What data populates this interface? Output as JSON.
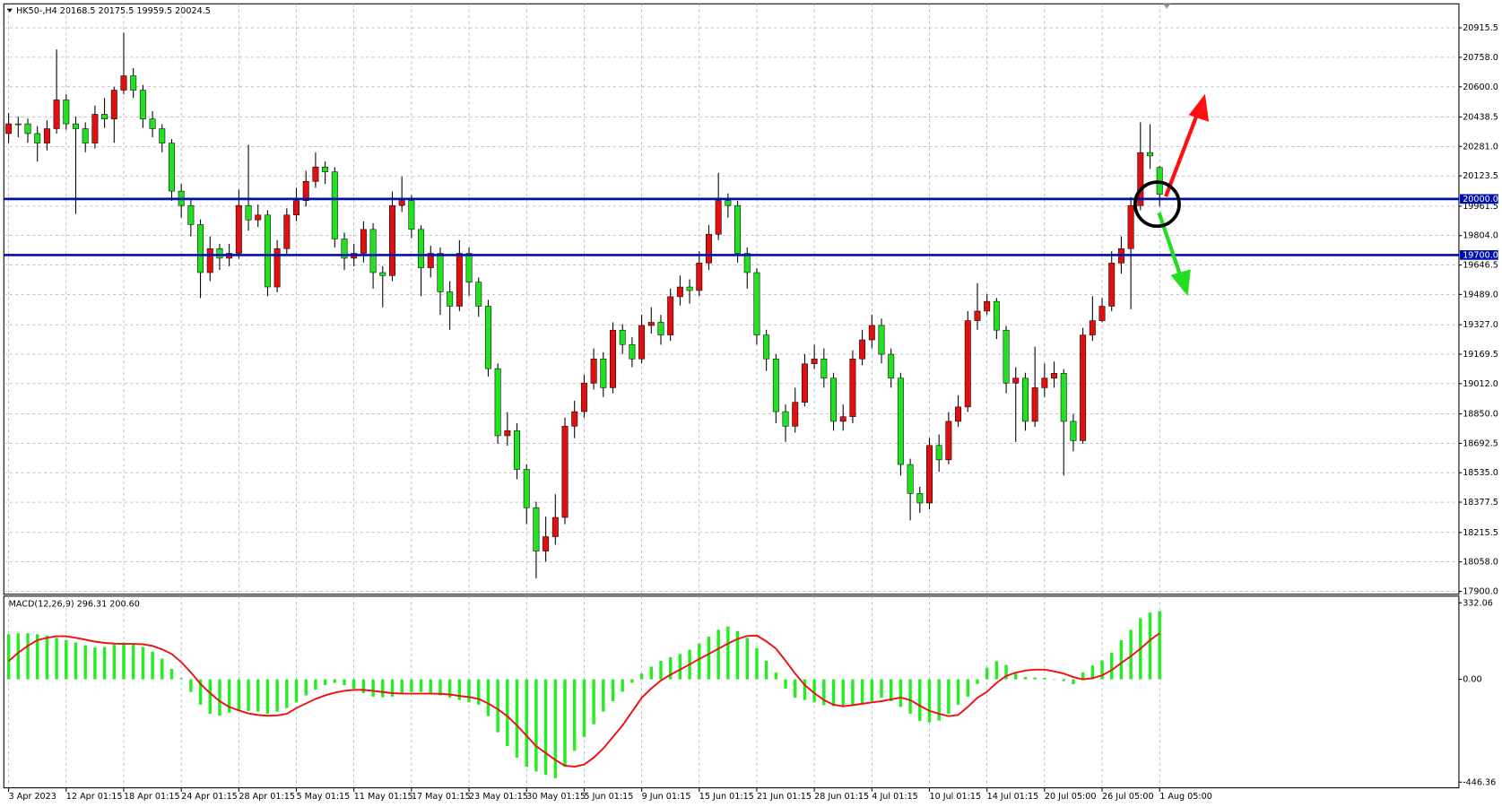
{
  "chart_data": [
    {
      "type": "candlestick",
      "title": "HK50-,H4  20168.5 20175.5 19959.5 20024.5",
      "xlim": [
        -0.5,
        151.2
      ],
      "ylim": [
        17885,
        21044
      ],
      "grid": true,
      "up_color": "#e01010",
      "down_color": "#22e022",
      "wick_color": "#000000",
      "xticks": [
        {
          "value": 0,
          "label": "3 Apr 2023"
        },
        {
          "value": 6,
          "label": "12 Apr 01:15"
        },
        {
          "value": 12,
          "label": "18 Apr 01:15"
        },
        {
          "value": 18,
          "label": "24 Apr 01:15"
        },
        {
          "value": 24,
          "label": "28 Apr 01:15"
        },
        {
          "value": 30,
          "label": "5 May 01:15"
        },
        {
          "value": 36,
          "label": "11 May 01:15"
        },
        {
          "value": 42,
          "label": "17 May 01:15"
        },
        {
          "value": 48,
          "label": "23 May 01:15"
        },
        {
          "value": 54,
          "label": "30 May 01:15"
        },
        {
          "value": 60,
          "label": "5 Jun 01:15"
        },
        {
          "value": 66,
          "label": "9 Jun 01:15"
        },
        {
          "value": 72,
          "label": "15 Jun 01:15"
        },
        {
          "value": 78,
          "label": "21 Jun 01:15"
        },
        {
          "value": 84,
          "label": "28 Jun 01:15"
        },
        {
          "value": 90,
          "label": "4 Jul 01:15"
        },
        {
          "value": 96,
          "label": "10 Jul 01:15"
        },
        {
          "value": 102,
          "label": "14 Jul 01:15"
        },
        {
          "value": 108,
          "label": "20 Jul 05:00"
        },
        {
          "value": 114,
          "label": "26 Jul 05:00"
        },
        {
          "value": 120,
          "label": "1 Aug 05:00"
        }
      ],
      "yticks": [
        20915.5,
        {
          "value": 20758,
          "label": "20758.0"
        },
        {
          "value": 20600,
          "label": "20600.0"
        },
        20438.5,
        {
          "value": 20281,
          "label": "20281.0"
        },
        20123.5,
        19961.5,
        {
          "value": 19804,
          "label": "19804.0"
        },
        19646.5,
        {
          "value": 19489,
          "label": "19489.0"
        },
        {
          "value": 19327,
          "label": "19327.0"
        },
        19169.5,
        {
          "value": 19012,
          "label": "19012.0"
        },
        {
          "value": 18850,
          "label": "18850.0"
        },
        18692.5,
        {
          "value": 18535,
          "label": "18535.0"
        },
        18377.5,
        18215.5,
        {
          "value": 18058,
          "label": "18058.0"
        },
        {
          "value": 17900,
          "label": "17900.0"
        }
      ],
      "hlines": [
        {
          "value": 20000,
          "label": "20000.0",
          "color": "#0010b0"
        },
        {
          "value": 19700,
          "label": "19700.0",
          "color": "#0010b0"
        }
      ],
      "open": [
        20350,
        20402,
        20402,
        20350,
        20299,
        20376,
        20530,
        20402,
        20376,
        20299,
        20453,
        20428,
        20582,
        20659,
        20582,
        20428,
        20376,
        20299,
        20042,
        19965,
        19863,
        19606,
        19734,
        19683,
        19709,
        19965,
        19888,
        19914,
        19529,
        19734,
        19914,
        19991,
        20094,
        20171,
        20145,
        19786,
        19683,
        19709,
        19837,
        19606,
        19590,
        19965,
        19991,
        19837,
        19632,
        19709,
        19503,
        19426,
        19709,
        19555,
        19426,
        19092,
        18733,
        18760,
        18553,
        18348,
        18116,
        18193,
        18296,
        18784,
        18862,
        19015,
        19144,
        18990,
        19298,
        19221,
        19144,
        19323,
        19340,
        19272,
        19477,
        19529,
        19510,
        19657,
        19811,
        19991,
        19965,
        19709,
        19606,
        19272,
        19144,
        18862,
        18784,
        18912,
        19118,
        19144,
        19041,
        18810,
        18835,
        19144,
        19246,
        19323,
        19169,
        19041,
        18579,
        18424,
        18373,
        18681,
        18604,
        18810,
        18887,
        19349,
        19400,
        19452,
        19298,
        19015,
        19041,
        18810,
        18990,
        19041,
        19067,
        18810,
        18707,
        19272,
        19349,
        19426,
        19657,
        19734,
        19965,
        20248,
        20168.5
      ],
      "high": [
        20460,
        20440,
        20430,
        20390,
        20420,
        20800,
        20560,
        20440,
        20410,
        20500,
        20540,
        20600,
        20890,
        20700,
        20610,
        20470,
        20400,
        20320,
        20080,
        20000,
        19890,
        19800,
        19760,
        19760,
        20050,
        20290,
        19970,
        19940,
        19780,
        19950,
        20060,
        20150,
        20250,
        20200,
        20170,
        19820,
        19760,
        19880,
        19870,
        19640,
        20040,
        20120,
        20020,
        19860,
        19750,
        19740,
        19560,
        19780,
        19740,
        19580,
        19460,
        19120,
        18860,
        18800,
        18580,
        18380,
        18300,
        18420,
        18830,
        18920,
        19060,
        19200,
        19180,
        19340,
        19330,
        19260,
        19380,
        19420,
        19380,
        19520,
        19590,
        19570,
        19720,
        19860,
        20140,
        20030,
        19990,
        19740,
        19630,
        19300,
        19170,
        18900,
        18990,
        19170,
        19220,
        19200,
        19070,
        18900,
        19190,
        19300,
        19380,
        19360,
        19200,
        19070,
        18610,
        18460,
        18720,
        18740,
        18860,
        18950,
        19400,
        19550,
        19490,
        19470,
        19320,
        19100,
        19070,
        19210,
        19120,
        19130,
        19090,
        18850,
        19310,
        19480,
        19470,
        19720,
        19800,
        20010,
        20410,
        20400,
        20175.5
      ],
      "low": [
        20300,
        20330,
        20300,
        20200,
        20260,
        20350,
        20370,
        19920,
        20250,
        20270,
        20380,
        20300,
        20560,
        20540,
        20380,
        20330,
        20250,
        19990,
        19900,
        19800,
        19470,
        19560,
        19620,
        19640,
        19680,
        19830,
        19850,
        19480,
        19500,
        19700,
        19880,
        19960,
        20060,
        20080,
        19740,
        19620,
        19640,
        19660,
        19520,
        19420,
        19560,
        19930,
        19790,
        19480,
        19580,
        19380,
        19300,
        19400,
        19480,
        19370,
        19050,
        18690,
        18680,
        18500,
        18260,
        17970,
        18060,
        18150,
        18260,
        18720,
        18830,
        18980,
        18940,
        18960,
        19170,
        19100,
        19120,
        19280,
        19220,
        19240,
        19430,
        19440,
        19480,
        19620,
        19780,
        19900,
        19660,
        19520,
        19220,
        19080,
        18800,
        18700,
        18750,
        18890,
        19090,
        18990,
        18760,
        18760,
        18800,
        19110,
        19200,
        19120,
        18990,
        18520,
        18280,
        18320,
        18340,
        18540,
        18580,
        18780,
        18860,
        19300,
        19380,
        19250,
        18960,
        18700,
        18760,
        18780,
        18940,
        18990,
        18520,
        18650,
        18690,
        19240,
        19340,
        19400,
        19600,
        19410,
        19940,
        20160,
        19959.5
      ],
      "close": [
        20402,
        20402,
        20350,
        20299,
        20376,
        20530,
        20402,
        20376,
        20299,
        20453,
        20428,
        20582,
        20659,
        20582,
        20428,
        20376,
        20299,
        20042,
        19965,
        19863,
        19606,
        19734,
        19683,
        19709,
        19965,
        19888,
        19914,
        19529,
        19734,
        19914,
        19991,
        20094,
        20171,
        20145,
        19786,
        19683,
        19709,
        19837,
        19606,
        19590,
        19965,
        19991,
        19837,
        19632,
        19709,
        19503,
        19426,
        19709,
        19555,
        19426,
        19092,
        18733,
        18760,
        18553,
        18348,
        18116,
        18193,
        18296,
        18784,
        18862,
        19015,
        19144,
        18990,
        19298,
        19221,
        19144,
        19323,
        19340,
        19272,
        19477,
        19529,
        19510,
        19657,
        19811,
        19991,
        19965,
        19709,
        19606,
        19272,
        19144,
        18862,
        18784,
        18912,
        19118,
        19144,
        19041,
        18810,
        18835,
        19144,
        19246,
        19323,
        19169,
        19041,
        18579,
        18424,
        18373,
        18681,
        18604,
        18810,
        18887,
        19349,
        19400,
        19452,
        19298,
        19015,
        19041,
        18810,
        18990,
        19041,
        19067,
        18810,
        18707,
        19272,
        19349,
        19426,
        19657,
        19734,
        19965,
        20248,
        20230,
        20024.5
      ]
    },
    {
      "type": "macd",
      "title": "MACD(12,26,9) 296.31 200.60",
      "ylim": [
        -471,
        361
      ],
      "yticks": [
        332.06,
        {
          "value": 0,
          "label": "0.00"
        },
        -446.36
      ],
      "histogram": {
        "color": "#22ee22",
        "values": [
          196,
          200,
          200,
          196,
          190,
          180,
          170,
          160,
          148,
          138,
          140,
          150,
          160,
          155,
          140,
          120,
          90,
          45,
          5,
          -55,
          -110,
          -150,
          -158,
          -145,
          -137,
          -137,
          -140,
          -150,
          -140,
          -125,
          -100,
          -70,
          -45,
          -25,
          -15,
          -25,
          -40,
          -60,
          -75,
          -78,
          -75,
          -65,
          -55,
          -55,
          -60,
          -70,
          -80,
          -90,
          -100,
          -110,
          -160,
          -230,
          -290,
          -340,
          -380,
          -400,
          -415,
          -429,
          -380,
          -310,
          -250,
          -195,
          -140,
          -95,
          -54,
          -15,
          25,
          55,
          80,
          96,
          110,
          128,
          155,
          185,
          215,
          229,
          210,
          180,
          135,
          80,
          29,
          -40,
          -80,
          -90,
          -100,
          -112,
          -117,
          -117,
          -115,
          -108,
          -95,
          -80,
          -95,
          -120,
          -150,
          -180,
          -187,
          -179,
          -150,
          -110,
          -75,
          -20,
          50,
          79,
          62,
          25,
          10,
          8,
          6,
          0,
          -8,
          -21,
          30,
          60,
          82,
          115,
          170,
          215,
          265,
          290,
          296.31
        ]
      },
      "signal": {
        "color": "#ee1111",
        "values": [
          79,
          115,
          145,
          170,
          180,
          187,
          187,
          180,
          172,
          164,
          158,
          155,
          154,
          154,
          152,
          145,
          130,
          110,
          75,
          30,
          -20,
          -60,
          -95,
          -120,
          -135,
          -148,
          -155,
          -158,
          -157,
          -150,
          -125,
          -105,
          -85,
          -70,
          -58,
          -50,
          -46,
          -46,
          -50,
          -55,
          -60,
          -62,
          -62,
          -62,
          -62,
          -63,
          -66,
          -72,
          -77,
          -85,
          -105,
          -130,
          -160,
          -200,
          -245,
          -290,
          -320,
          -350,
          -375,
          -379,
          -370,
          -340,
          -300,
          -250,
          -200,
          -140,
          -80,
          -40,
          -5,
          20,
          42,
          65,
          88,
          110,
          133,
          155,
          175,
          188,
          190,
          165,
          133,
          80,
          25,
          -25,
          -60,
          -90,
          -110,
          -117,
          -112,
          -106,
          -100,
          -95,
          -87,
          -79,
          -90,
          -115,
          -137,
          -150,
          -160,
          -155,
          -120,
          -80,
          -54,
          -15,
          15,
          29,
          38,
          42,
          42,
          35,
          25,
          10,
          0,
          5,
          17,
          40,
          71,
          100,
          133,
          170,
          200.6
        ]
      }
    }
  ]
}
